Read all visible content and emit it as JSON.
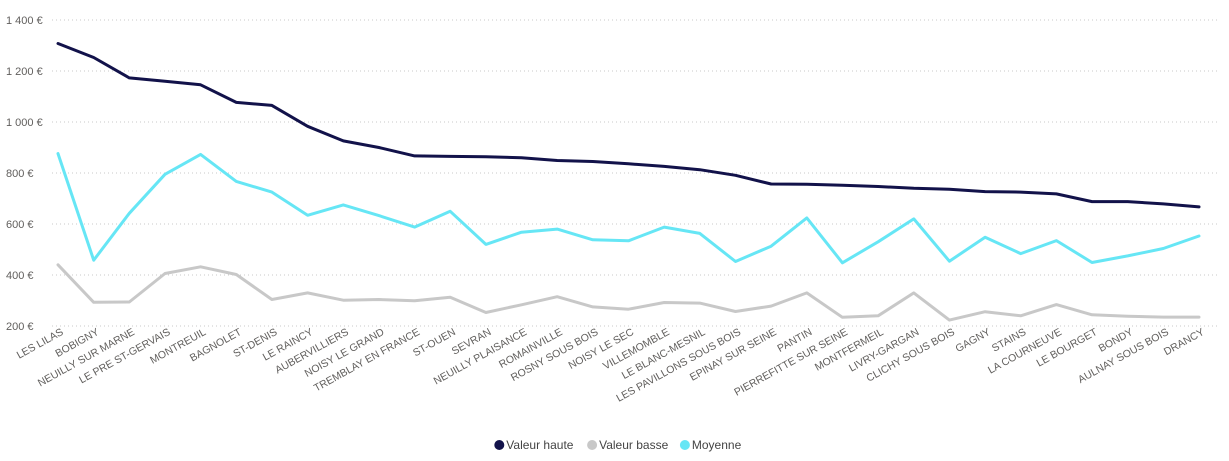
{
  "chart_data": {
    "type": "line",
    "title": "",
    "xlabel": "",
    "ylabel": "",
    "ylim": [
      200,
      1400
    ],
    "y_ticks": [
      200,
      400,
      600,
      800,
      1000,
      1200,
      1400
    ],
    "y_tick_labels": [
      "200 €",
      "400 €",
      "600 €",
      "800 €",
      "1 000 €",
      "1 200 €",
      "1 400 €"
    ],
    "grid": true,
    "legend_position": "bottom-center",
    "categories": [
      "LES LILAS",
      "BOBIGNY",
      "NEUILLY SUR MARNE",
      "LE PRE ST-GERVAIS",
      "MONTREUIL",
      "BAGNOLET",
      "ST-DENIS",
      "LE RAINCY",
      "AUBERVILLIERS",
      "NOISY LE GRAND",
      "TREMBLAY EN FRANCE",
      "ST-OUEN",
      "SEVRAN",
      "NEUILLY PLAISANCE",
      "ROMAINVILLE",
      "ROSNY SOUS BOIS",
      "NOISY LE SEC",
      "VILLEMOMBLE",
      "LE BLANC-MESNIL",
      "LES PAVILLONS SOUS BOIS",
      "EPINAY SUR SEINE",
      "PANTIN",
      "PIERREFITTE SUR SEINE",
      "MONTFERMEIL",
      "LIVRY-GARGAN",
      "CLICHY SOUS BOIS",
      "GAGNY",
      "STAINS",
      "LA COURNEUVE",
      "LE BOURGET",
      "BONDY",
      "AULNAY SOUS BOIS",
      "DRANCY"
    ],
    "series": [
      {
        "name": "Valeur haute",
        "color": "#12124a",
        "values": [
          1308,
          1253,
          1173,
          1160,
          1146,
          1077,
          1065,
          983,
          926,
          900,
          867,
          865,
          864,
          860,
          849,
          845,
          836,
          826,
          813,
          791,
          757,
          756,
          752,
          747,
          740,
          736,
          727,
          725,
          718,
          688,
          688,
          679,
          667
        ]
      },
      {
        "name": "Valeur basse",
        "color": "#c8c8c8",
        "values": [
          440,
          293,
          294,
          406,
          432,
          402,
          304,
          330,
          301,
          304,
          299,
          313,
          253,
          283,
          315,
          275,
          266,
          292,
          290,
          257,
          278,
          330,
          234,
          240,
          330,
          223,
          256,
          240,
          284,
          244,
          238,
          235,
          235
        ]
      },
      {
        "name": "Moyenne",
        "color": "#66e6f5",
        "values": [
          876,
          458,
          642,
          795,
          873,
          767,
          725,
          634,
          675,
          633,
          588,
          650,
          520,
          568,
          580,
          538,
          534,
          588,
          563,
          453,
          513,
          624,
          448,
          530,
          620,
          454,
          548,
          484,
          535,
          449,
          475,
          504,
          553
        ]
      }
    ]
  }
}
